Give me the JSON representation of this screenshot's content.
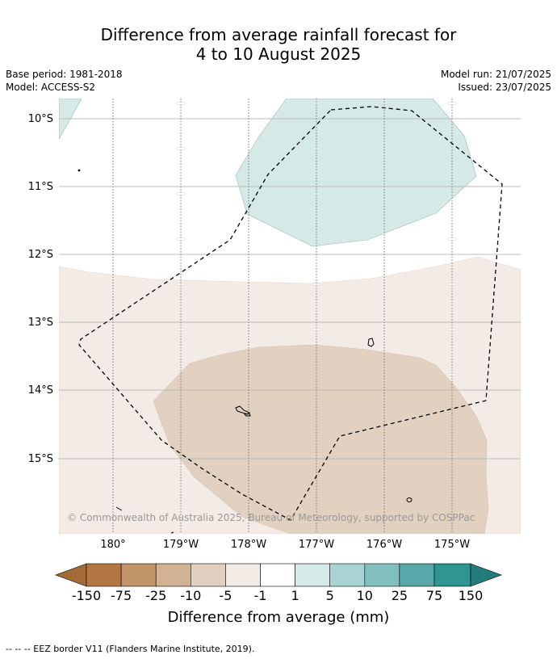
{
  "title_line1": "Difference from average rainfall forecast for",
  "title_line2": "4 to 10 August 2025",
  "meta": {
    "base_period": "Base period: 1981-2018",
    "model": "Model: ACCESS-S2",
    "model_run": "Model run: 21/07/2025",
    "issued": "Issued: 23/07/2025"
  },
  "map": {
    "lat_labels": [
      "10°S",
      "11°S",
      "12°S",
      "13°S",
      "14°S",
      "15°S"
    ],
    "lon_labels": [
      "180°",
      "179°W",
      "178°W",
      "177°W",
      "176°W",
      "175°W"
    ],
    "copyright": "© Commonwealth of Australia 2025, Bureau of Meteorology, supported by COSPPac",
    "region_colors": {
      "wet_light": "#d4e9e8",
      "dry_light": "#f3ebe6",
      "dry_medium": "#e2d0c1"
    }
  },
  "legend": {
    "tick_labels": [
      "-150",
      "-75",
      "-25",
      "-10",
      "-5",
      "-1",
      "1",
      "5",
      "10",
      "25",
      "75",
      "150"
    ],
    "colors": [
      "#a36b35",
      "#b27742",
      "#c19369",
      "#d2b294",
      "#e2d0c1",
      "#f3ebe6",
      "#ffffff",
      "#d4e9e8",
      "#a9d3d3",
      "#81bfbf",
      "#57a9a9",
      "#2e9593",
      "#237c7a"
    ],
    "label": "Difference from average (mm)"
  },
  "footnote": "--  --  -- EEZ border V11 (Flanders Marine Institute, 2019)."
}
